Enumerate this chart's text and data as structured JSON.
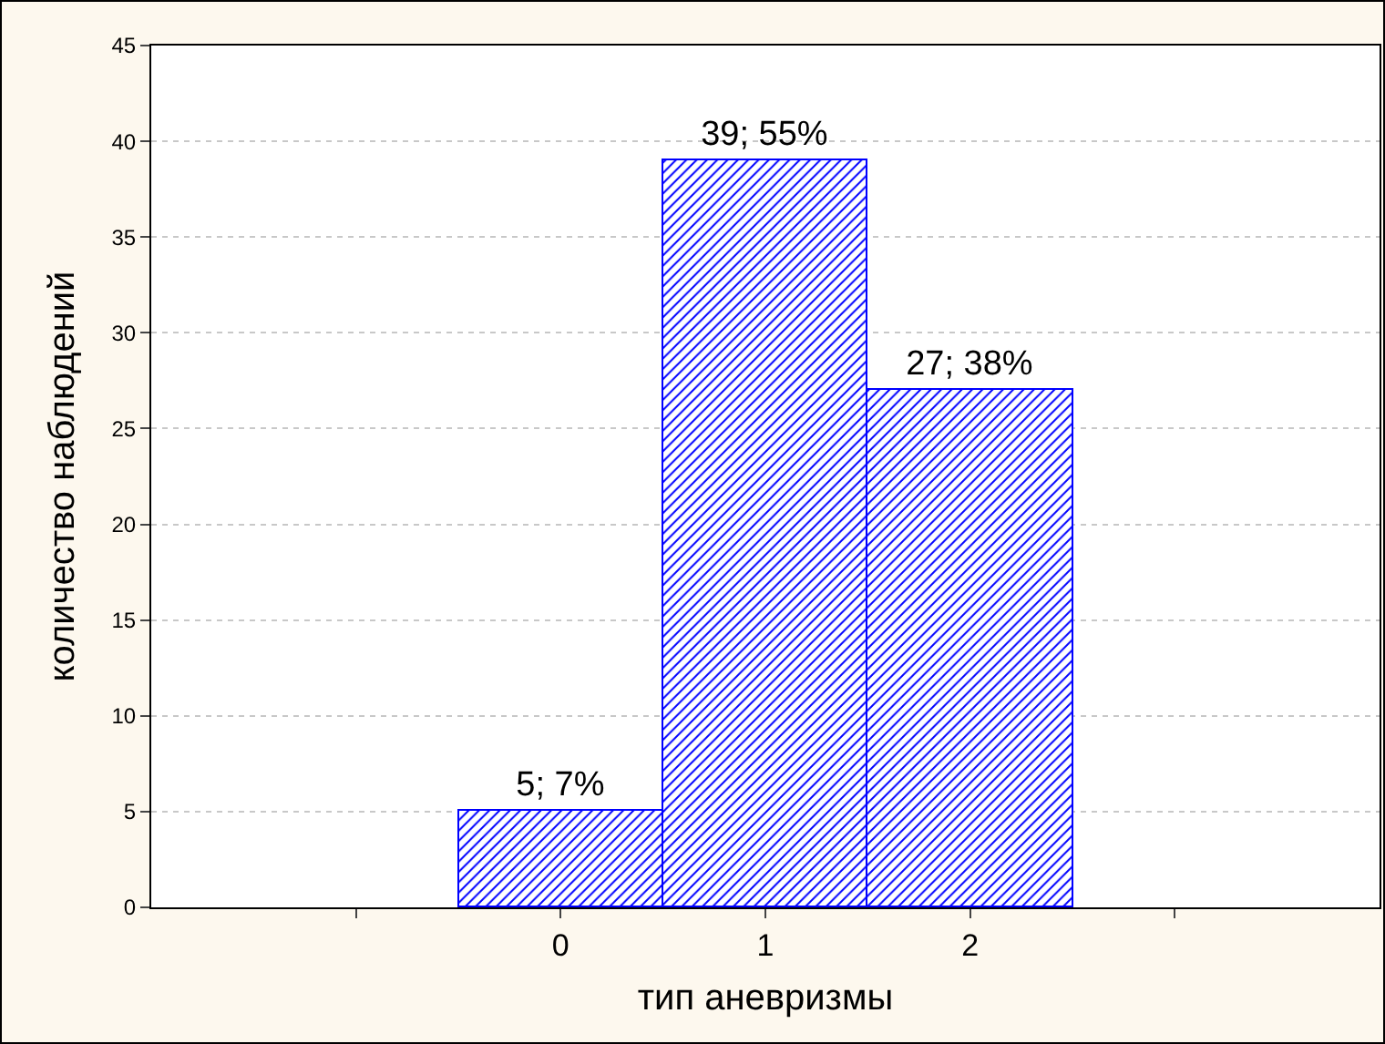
{
  "chart_data": {
    "type": "bar",
    "xlabel": "тип аневризмы",
    "ylabel": "количество наблюдений",
    "x": [
      0,
      1,
      2
    ],
    "values": [
      5,
      39,
      27
    ],
    "color": "#0000ff",
    "value_labels": [
      "5; 7%",
      "39; 55%",
      "27; 38%"
    ],
    "xlim": [
      -2,
      4
    ],
    "xticks": [
      {
        "value": -1,
        "label": null
      },
      0,
      1,
      2,
      {
        "value": 3,
        "label": null
      }
    ],
    "ylim": [
      0,
      45
    ],
    "yticks": [
      0,
      5,
      10,
      15,
      20,
      25,
      30,
      35,
      40,
      45
    ],
    "grid": "y"
  }
}
